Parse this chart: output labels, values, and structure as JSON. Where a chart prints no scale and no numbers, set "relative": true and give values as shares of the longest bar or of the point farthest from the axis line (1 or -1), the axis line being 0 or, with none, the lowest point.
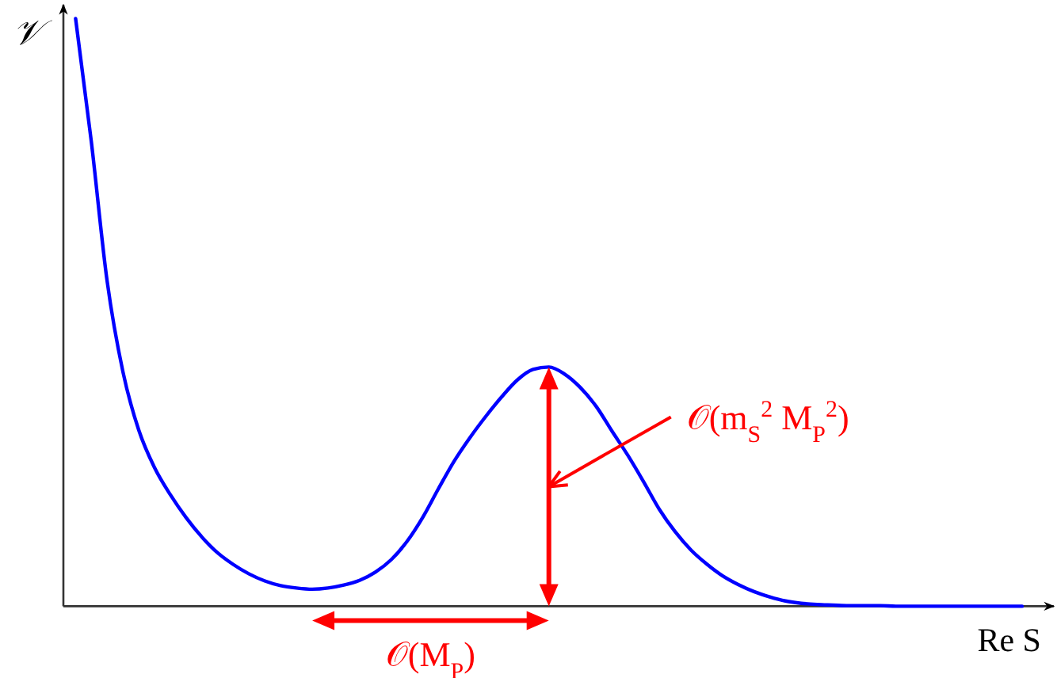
{
  "chart_data": {
    "type": "line",
    "xlabel": "Re S",
    "ylabel": "𝒱",
    "annotations": [
      "𝒪(m$_{S}$$^{2}$ M$_{P}$$^{2}$)",
      "𝒪(M$_{P}$)"
    ],
    "relative": true,
    "categories": [
      null,
      null,
      null,
      null,
      null,
      null,
      null,
      null,
      null,
      null,
      null,
      null,
      null,
      null,
      null,
      null,
      null,
      null,
      null,
      null,
      null,
      null,
      null,
      null,
      null,
      null,
      null,
      null,
      null,
      null,
      null,
      null,
      null,
      null,
      null,
      null,
      null,
      null,
      null,
      null,
      null,
      null,
      null,
      null,
      null,
      null,
      null,
      null,
      null,
      null,
      null,
      null,
      null,
      null,
      null,
      null,
      null,
      null,
      null,
      null,
      null
    ],
    "series": [
      {
        "color": "#0000ff",
        "values": [
          1.0,
          0.79,
          0.553,
          0.399,
          0.3,
          0.236,
          0.19,
          0.151,
          0.118,
          0.091,
          0.071,
          0.055,
          0.043,
          0.035,
          0.031,
          0.029,
          0.031,
          0.036,
          0.044,
          0.058,
          0.079,
          0.11,
          0.151,
          0.2,
          0.247,
          0.287,
          0.323,
          0.356,
          0.385,
          0.403,
          0.407,
          0.395,
          0.372,
          0.34,
          0.298,
          0.257,
          0.212,
          0.165,
          0.127,
          0.096,
          0.072,
          0.052,
          0.037,
          0.025,
          0.016,
          0.009,
          0.005,
          0.003,
          0.002,
          0.001,
          0.001,
          0.001,
          0,
          0,
          0,
          0,
          0,
          0,
          0,
          0,
          0
        ]
      }
    ]
  }
}
